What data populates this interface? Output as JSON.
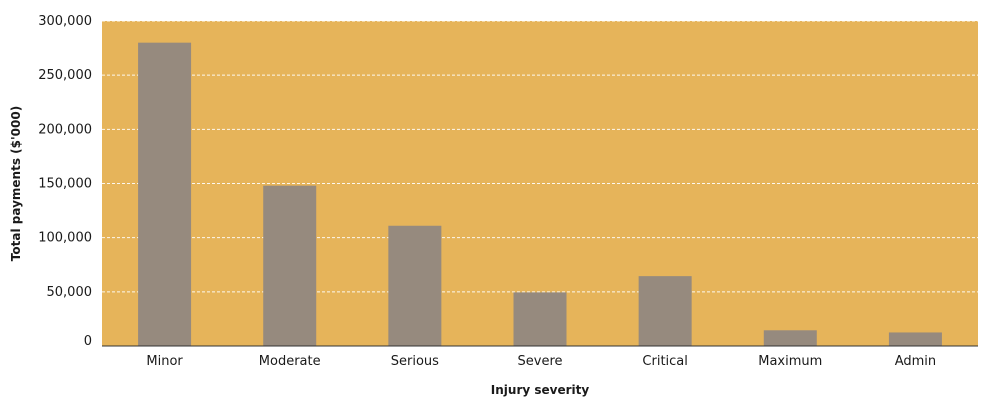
{
  "chart_data": {
    "type": "bar",
    "title": "",
    "xlabel": "Injury severity",
    "ylabel": "Total payments ($'000)",
    "categories": [
      "Minor",
      "Moderate",
      "Serious",
      "Severe",
      "Critical",
      "Maximum",
      "Admin"
    ],
    "values": [
      280000,
      148000,
      111000,
      49500,
      64500,
      14500,
      12500
    ],
    "ylim": [
      0,
      300000
    ],
    "yticks": [
      0,
      50000,
      100000,
      150000,
      200000,
      250000,
      300000
    ],
    "ytick_labels": [
      "0",
      "50,000",
      "100,000",
      "150,000",
      "200,000",
      "250,000",
      "300,000"
    ],
    "grid": true,
    "legend": "none",
    "colors": {
      "plot_background": "#E6B45A",
      "bar": "#968A7E",
      "gridline": "#FFFFFF",
      "axis": "#333333"
    }
  }
}
